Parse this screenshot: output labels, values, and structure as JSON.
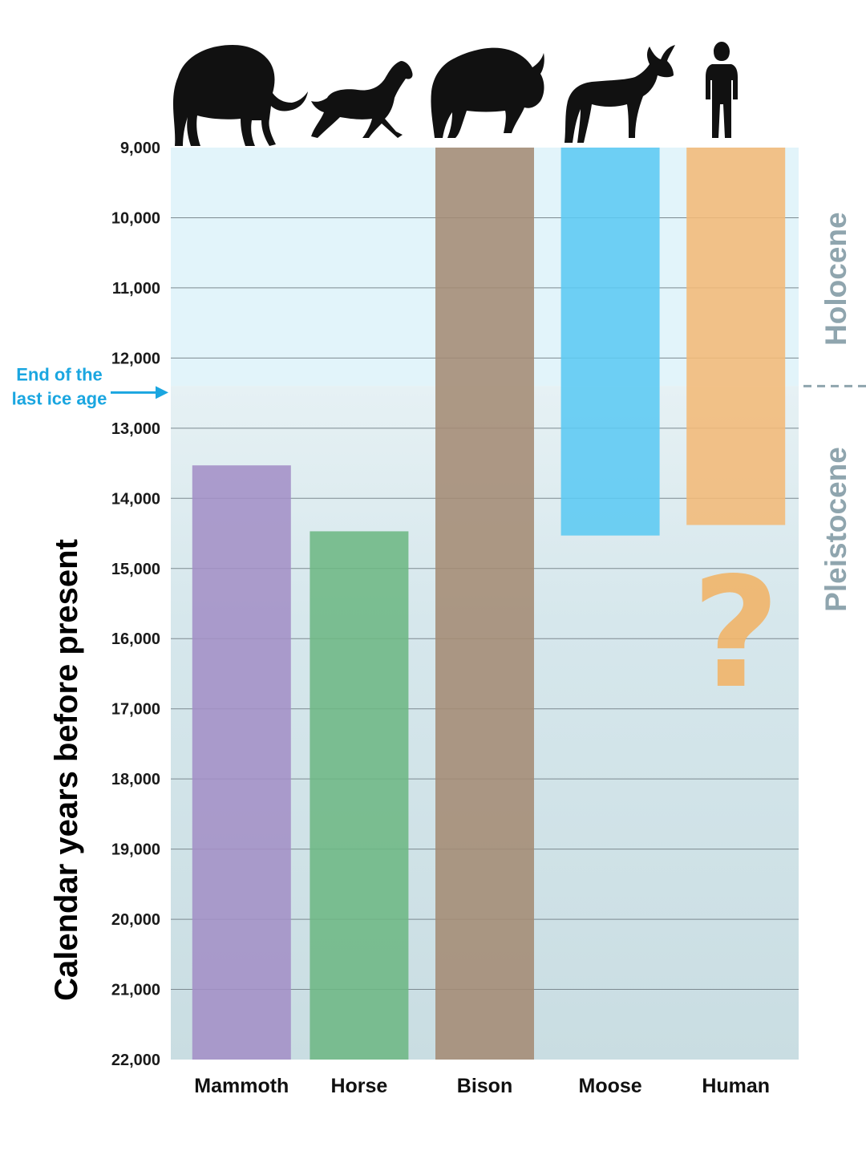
{
  "chart_data": {
    "type": "bar",
    "ylabel": "Calendar years before present",
    "yticks": [
      "9,000",
      "10,000",
      "11,000",
      "12,000",
      "13,000",
      "14,000",
      "15,000",
      "16,000",
      "17,000",
      "18,000",
      "19,000",
      "20,000",
      "21,000",
      "22,000"
    ],
    "ylim": [
      9000,
      22000
    ],
    "y_reversed": true,
    "grid": true,
    "categories": [
      "Mammoth",
      "Horse",
      "Bison",
      "Moose",
      "Human"
    ],
    "bars": [
      {
        "name": "Mammoth",
        "from": 22000,
        "to": 13530,
        "color": "#a38fc6",
        "icon": "mammoth-icon"
      },
      {
        "name": "Horse",
        "from": 22000,
        "to": 14470,
        "color": "#6db784",
        "icon": "horse-icon"
      },
      {
        "name": "Bison",
        "from": 22000,
        "to": 9000,
        "color": "#a48b74",
        "icon": "bison-icon"
      },
      {
        "name": "Moose",
        "from": 14530,
        "to": 9000,
        "color": "#5ccaf2",
        "icon": "moose-icon"
      },
      {
        "name": "Human",
        "from": 14380,
        "to": 9000,
        "color": "#f2b978",
        "icon": "human-icon"
      }
    ],
    "uncertain_marker": {
      "category": "Human",
      "text": "?"
    },
    "epoch_boundary": 12400,
    "epochs": [
      {
        "name": "Holocene",
        "from": 9000,
        "to": 12400,
        "color": "#e2f4fa"
      },
      {
        "name": "Pleistocene",
        "from": 12400,
        "to": 22000,
        "color": "#cfe2e7"
      }
    ],
    "annotation": {
      "lines": [
        "End of the",
        "last ice age"
      ],
      "at": 12400,
      "color": "#1aa6e0"
    }
  }
}
